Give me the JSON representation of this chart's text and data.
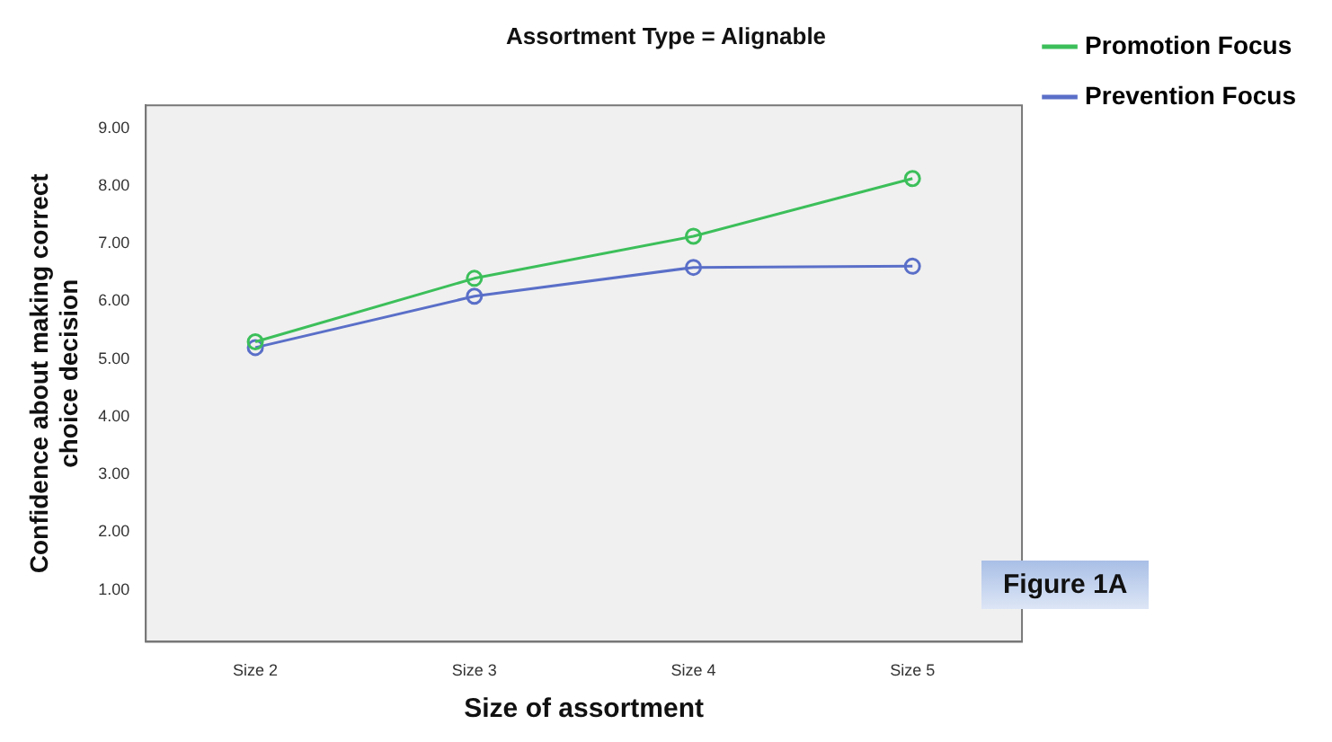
{
  "chart_data": {
    "type": "line",
    "title": "Assortment Type = Alignable",
    "xlabel": "Size of assortment",
    "ylabel": "Confidence about making correct choice decision",
    "categories": [
      "Size 2",
      "Size 3",
      "Size 4",
      "Size 5"
    ],
    "series": [
      {
        "name": "Promotion Focus",
        "color": "#3cbf5a",
        "values": [
          5.3,
          6.4,
          7.13,
          8.13
        ]
      },
      {
        "name": "Prevention Focus",
        "color": "#5a6fc8",
        "values": [
          5.2,
          6.09,
          6.59,
          6.61
        ]
      }
    ],
    "ylim": [
      0.1,
      9.4
    ],
    "yticks": [
      {
        "value": 1,
        "label": "1.00"
      },
      {
        "value": 2,
        "label": "2.00"
      },
      {
        "value": 3,
        "label": "3.00"
      },
      {
        "value": 4,
        "label": "4.00"
      },
      {
        "value": 5,
        "label": "5.00"
      },
      {
        "value": 6,
        "label": "6.00"
      },
      {
        "value": 7,
        "label": "7.00"
      },
      {
        "value": 8,
        "label": "8.00"
      },
      {
        "value": 9,
        "label": "9.00"
      }
    ],
    "grid": false,
    "legend": "right",
    "marker": "circle",
    "line_style": "solid",
    "annotations": [
      "Figure 1A"
    ]
  }
}
